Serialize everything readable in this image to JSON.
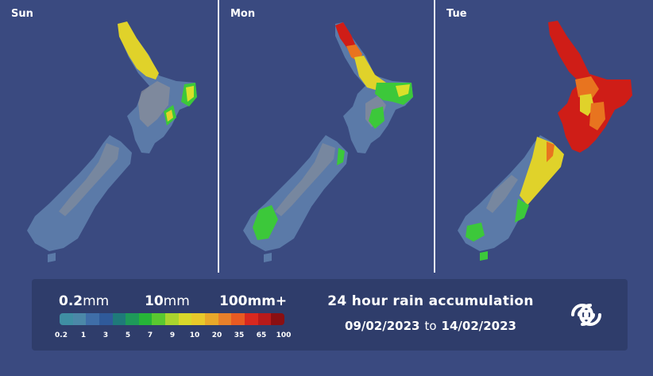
{
  "panels": [
    {
      "day": "Sun"
    },
    {
      "day": "Mon"
    },
    {
      "day": "Tue"
    }
  ],
  "legend": {
    "heads": [
      {
        "value": "0.2",
        "unit": "mm"
      },
      {
        "value": "10",
        "unit": "mm"
      },
      {
        "value": "100",
        "unit": "mm+"
      }
    ],
    "ticks": [
      "0.2",
      "1",
      "3",
      "5",
      "7",
      "9",
      "10",
      "20",
      "35",
      "65",
      "100"
    ],
    "colors": [
      "#3f8fa3",
      "#4b88a8",
      "#3f6ea8",
      "#2f5a9a",
      "#1f7a7a",
      "#1e9a5a",
      "#26b538",
      "#5ac830",
      "#a9d42e",
      "#d9d82a",
      "#e8c92a",
      "#e8a82a",
      "#e8802a",
      "#e85a22",
      "#d8281f",
      "#b81a1a",
      "#8a0f12"
    ],
    "title": "24 hour rain accumulation",
    "date_from": "09/02/2023",
    "date_to_word": "to",
    "date_to": "14/02/2023"
  },
  "colors": {
    "background": "#3a4a80",
    "legend_bg": "#2f3d6b",
    "land": "#5b7aa8",
    "terrain": "#8a8f99",
    "yellow": "#e0d22a",
    "green": "#3cc83a",
    "red": "#cf1d17",
    "orange": "#e8741f"
  }
}
